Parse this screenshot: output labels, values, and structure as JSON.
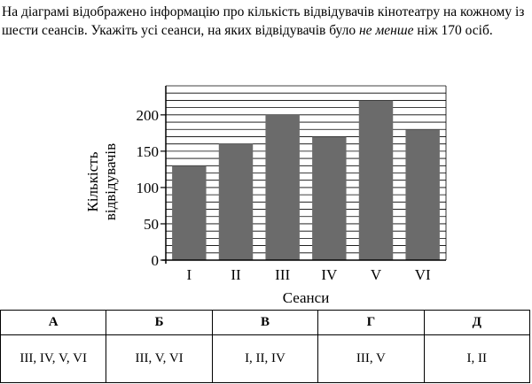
{
  "question": {
    "part1": "На діаграмі відображено інформацію про кількість відвідувачів кінотеатру на кожному із шести сеансів. Укажіть усі сеанси, на яких відвідувачів було ",
    "emph": "не менше",
    "part2": " ніж 170 осіб."
  },
  "chart_data": {
    "type": "bar",
    "categories": [
      "I",
      "II",
      "III",
      "IV",
      "V",
      "VI"
    ],
    "values": [
      130,
      160,
      200,
      170,
      220,
      180
    ],
    "xlabel": "Сеанси",
    "ylabel_lines": [
      "Кількість",
      "відвідувачів"
    ],
    "ylim": [
      0,
      240
    ],
    "yticks": [
      0,
      50,
      100,
      150,
      200
    ],
    "minor_grid_step": 10,
    "grid": true,
    "bar_color": "#6b6b6b"
  },
  "answers": {
    "headers": [
      "А",
      "Б",
      "В",
      "Г",
      "Д"
    ],
    "values": [
      "III, IV, V, VI",
      "III, V, VI",
      "I, II, IV",
      "III, V",
      "I, II"
    ]
  }
}
